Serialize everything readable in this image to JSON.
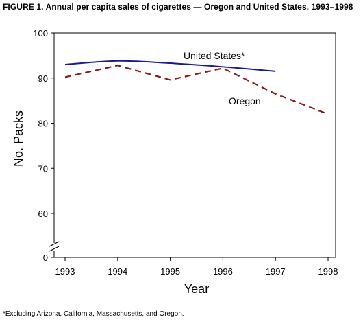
{
  "figure": {
    "title": "FIGURE 1. Annual per capita sales of cigarettes — Oregon and United States, 1993–1998",
    "footnote": "*Excluding Arizona, California, Massachusetts, and Oregon."
  },
  "chart_data": {
    "type": "line",
    "title": "FIGURE 1. Annual per capita sales of cigarettes — Oregon and United States, 1993–1998",
    "xlabel": "Year",
    "ylabel": "No. Packs",
    "x": [
      1993,
      1994,
      1995,
      1996,
      1997,
      1998
    ],
    "x_ticks": [
      "1993",
      "1994",
      "1995",
      "1996",
      "1997",
      "1998"
    ],
    "y_ticks": [
      "0",
      "60",
      "70",
      "80",
      "90",
      "100"
    ],
    "xlim": [
      1993,
      1998
    ],
    "ylim_shown": [
      55,
      100
    ],
    "axis_break": true,
    "grid": false,
    "series": [
      {
        "name": "United States*",
        "x": [
          1993,
          1994,
          1995,
          1996,
          1997
        ],
        "values": [
          93.0,
          93.8,
          93.3,
          92.5,
          91.5
        ],
        "color": "#1a1a8c",
        "style": "solid"
      },
      {
        "name": "Oregon",
        "x": [
          1993,
          1994,
          1995,
          1996,
          1997,
          1998
        ],
        "values": [
          90.2,
          92.8,
          89.6,
          92.2,
          86.5,
          82.0
        ],
        "color": "#8b1a1a",
        "style": "dashed"
      }
    ]
  }
}
